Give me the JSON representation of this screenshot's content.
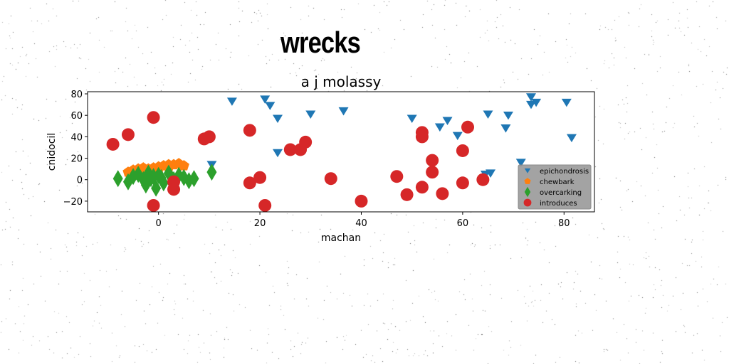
{
  "figure": {
    "suptitle": "wrecks"
  },
  "chart_data": {
    "type": "scatter",
    "title": "a j molassy",
    "xlabel": "machan",
    "ylabel": "cnidocil",
    "xlim": [
      -14,
      86
    ],
    "ylim": [
      -30,
      82
    ],
    "xticks": [
      0,
      20,
      40,
      60,
      80
    ],
    "yticks": [
      -20,
      0,
      20,
      40,
      60,
      80
    ],
    "legend": {
      "placement": "lower-right",
      "background": "#999999"
    },
    "series": [
      {
        "name": "epichondrosis",
        "marker": "triangle-down",
        "color": "#1f77b4",
        "x": [
          14.5,
          21,
          22,
          23.5,
          23.5,
          30,
          36.5,
          50,
          55.5,
          57,
          59,
          65,
          65.5,
          69,
          68.5,
          71.5,
          73.5,
          73.5,
          74.5,
          80.5,
          81.5,
          10.5,
          64.5
        ],
        "y": [
          73,
          75,
          69,
          57,
          25,
          61,
          64,
          57,
          49,
          55,
          41,
          61,
          6,
          60,
          48,
          16,
          70,
          77,
          72,
          72,
          39,
          14,
          5
        ]
      },
      {
        "name": "chewbark",
        "marker": "pentagon",
        "color": "#ff7f0e",
        "x": [
          -6,
          -5,
          -4,
          -3,
          -2,
          -1,
          0,
          1,
          2,
          3,
          4,
          5,
          -4,
          -2,
          0,
          2
        ],
        "y": [
          7,
          9,
          10,
          11,
          10,
          11,
          12,
          13,
          14,
          14,
          15,
          13,
          5,
          7,
          9,
          11
        ]
      },
      {
        "name": "overcarking",
        "marker": "thin-diamond",
        "color": "#2ca02c",
        "x": [
          -8,
          -6,
          -5,
          -4,
          -3,
          -2.5,
          -2,
          -1.5,
          -1,
          -0.5,
          0,
          0.5,
          1,
          2,
          3,
          4,
          5,
          6,
          7,
          10.5
        ],
        "y": [
          1,
          -2,
          3,
          5,
          0,
          -5,
          6,
          1,
          3,
          -8,
          4,
          2,
          -3,
          6,
          0,
          4,
          2,
          -1,
          1,
          7
        ]
      },
      {
        "name": "introduces",
        "marker": "circle",
        "color": "#d62728",
        "x": [
          -9,
          -6,
          -1,
          -1,
          3,
          3,
          9,
          10,
          18,
          18,
          20,
          21,
          26,
          28,
          29,
          34,
          40,
          47,
          49,
          52,
          52,
          52,
          54,
          54,
          56,
          60,
          60,
          61,
          64
        ],
        "y": [
          33,
          42,
          58,
          -24,
          -2,
          -9,
          38,
          40,
          46,
          -3,
          2,
          -24,
          28,
          28,
          35,
          1,
          -20,
          3,
          -14,
          44,
          40,
          -7,
          18,
          7,
          -13,
          27,
          -3,
          49,
          0
        ]
      }
    ]
  }
}
